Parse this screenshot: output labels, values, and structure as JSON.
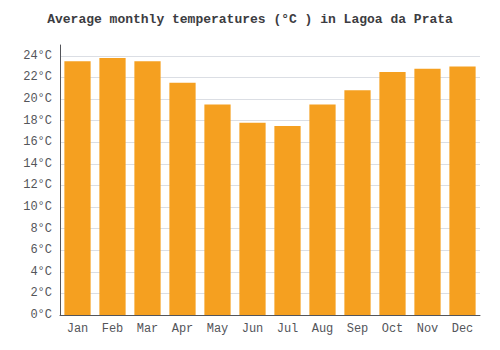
{
  "chart_data": {
    "type": "bar",
    "title": "Average monthly temperatures (°C ) in Lagoa da Prata",
    "categories": [
      "Jan",
      "Feb",
      "Mar",
      "Apr",
      "May",
      "Jun",
      "Jul",
      "Aug",
      "Sep",
      "Oct",
      "Nov",
      "Dec"
    ],
    "values": [
      23.5,
      23.8,
      23.5,
      21.5,
      19.5,
      17.8,
      17.5,
      19.5,
      20.8,
      22.5,
      22.8,
      23.0
    ],
    "color": "#F5A020",
    "ylim": [
      0,
      25
    ],
    "yticks": [
      {
        "value": 0,
        "label": "0°C"
      },
      {
        "value": 2,
        "label": "2°C"
      },
      {
        "value": 4,
        "label": "4°C"
      },
      {
        "value": 6,
        "label": "6°C"
      },
      {
        "value": 8,
        "label": "8°C"
      },
      {
        "value": 10,
        "label": "10°C"
      },
      {
        "value": 12,
        "label": "12°C"
      },
      {
        "value": 14,
        "label": "14°C"
      },
      {
        "value": 16,
        "label": "16°C"
      },
      {
        "value": 18,
        "label": "18°C"
      },
      {
        "value": 20,
        "label": "20°C"
      },
      {
        "value": 22,
        "label": "22°C"
      },
      {
        "value": 24,
        "label": "24°C"
      }
    ],
    "grid": true
  }
}
